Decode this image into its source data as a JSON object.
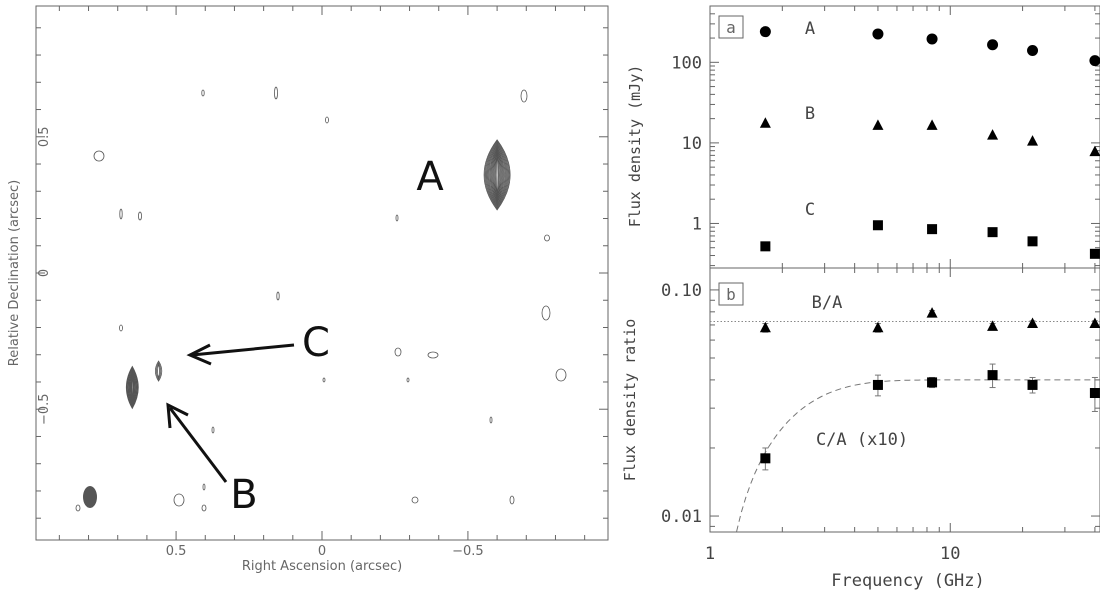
{
  "chart_data": [
    {
      "type": "contour",
      "xlabel": "Right Ascension  (arcsec)",
      "ylabel": "Relative Declination  (arcsec)",
      "xlim": [
        0.98,
        -0.98
      ],
      "ylim": [
        -0.98,
        0.98
      ],
      "x_ticks": [
        "0.5",
        "0",
        "−0.5"
      ],
      "x_tick_values": [
        0.5,
        0,
        -0.5
      ],
      "y_ticks": [
        "0.5",
        "0",
        "−0.5"
      ],
      "y_tick_values": [
        0.5,
        0,
        -0.5
      ],
      "components": [
        {
          "label": "A",
          "x": -0.6,
          "y": 0.36
        },
        {
          "label": "B",
          "x": 0.65,
          "y": -0.42
        },
        {
          "label": "C",
          "x": 0.56,
          "y": -0.36
        }
      ]
    },
    {
      "type": "scatter",
      "panel_label": "a",
      "ylabel": "Flux density  (mJy)",
      "xscale": "log",
      "yscale": "log",
      "xlim": [
        1,
        42
      ],
      "ylim": [
        0.28,
        500
      ],
      "y_ticks": [
        "1",
        "10",
        "100"
      ],
      "y_tick_values": [
        1,
        10,
        100
      ],
      "x": [
        1.7,
        5.0,
        8.4,
        15.0,
        22.0,
        40.0
      ],
      "series": [
        {
          "name": "A",
          "marker": "circle",
          "values": [
            240,
            225,
            195,
            165,
            140,
            105
          ]
        },
        {
          "name": "B",
          "marker": "triangle",
          "values": [
            17.5,
            16.5,
            16.5,
            12.5,
            10.5,
            7.8
          ]
        },
        {
          "name": "C",
          "marker": "square",
          "values": [
            0.52,
            0.95,
            0.85,
            0.78,
            0.6,
            0.42
          ]
        }
      ]
    },
    {
      "type": "scatter",
      "panel_label": "b",
      "ylabel": "Flux density ratio",
      "xlabel": "Frequency  (GHz)",
      "xscale": "log",
      "yscale": "log",
      "xlim": [
        1,
        42
      ],
      "ylim": [
        0.0085,
        0.125
      ],
      "x_ticks": [
        "1",
        "10"
      ],
      "x_tick_values": [
        1,
        10
      ],
      "y_ticks": [
        "0.01",
        "0.10"
      ],
      "y_tick_values": [
        0.01,
        0.1
      ],
      "x": [
        1.7,
        5.0,
        8.4,
        15.0,
        22.0,
        40.0
      ],
      "series": [
        {
          "name": "B/A",
          "marker": "triangle",
          "values": [
            0.068,
            0.068,
            0.079,
            0.069,
            0.071,
            0.071
          ]
        },
        {
          "name": "C/A (x10)",
          "marker": "square",
          "values": [
            0.018,
            0.038,
            0.039,
            0.042,
            0.038,
            0.035
          ]
        }
      ],
      "reference_line": 0.0725
    }
  ]
}
